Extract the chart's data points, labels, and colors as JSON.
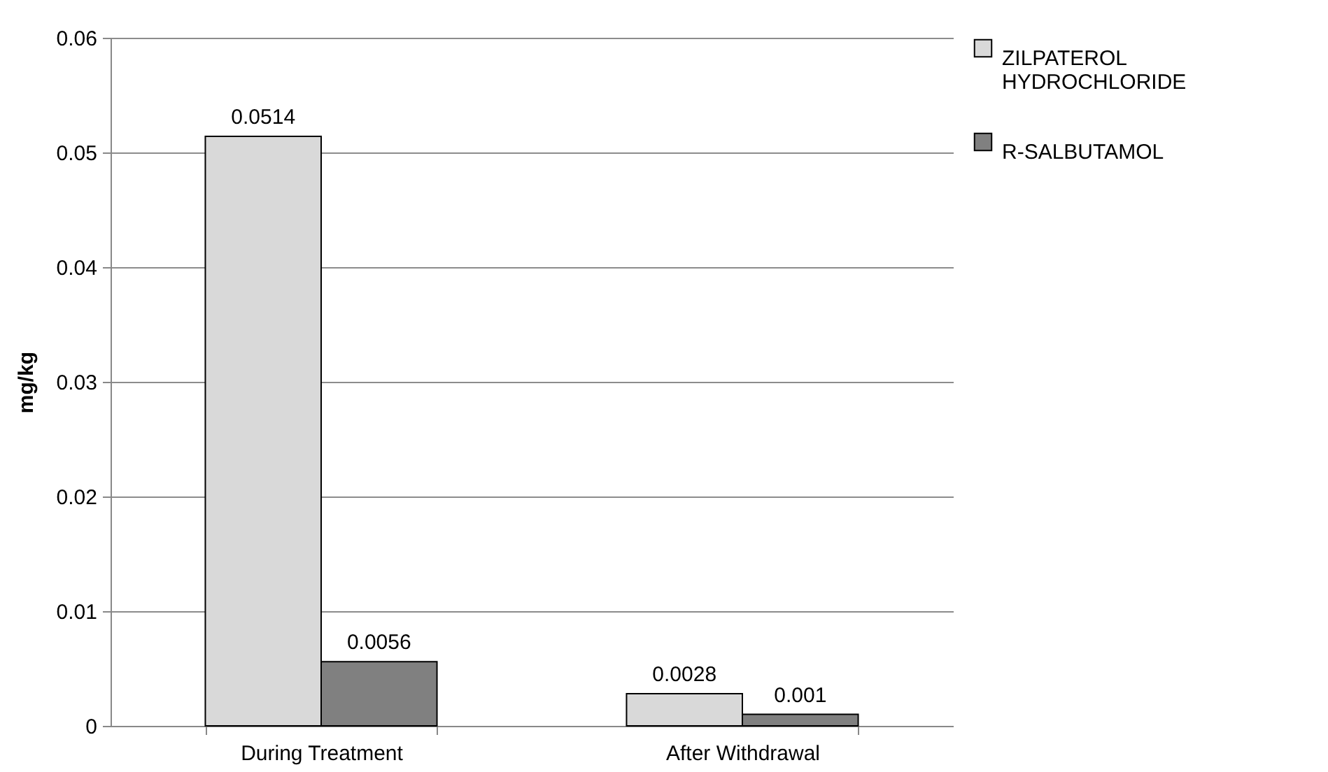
{
  "chart_data": {
    "type": "bar",
    "ylabel": "mg/kg",
    "categories": [
      "During Treatment",
      "After Withdrawal"
    ],
    "series": [
      {
        "name": "ZILPATEROL HYDROCHLORIDE",
        "color": "#d9d9d9",
        "values": [
          0.0514,
          0.0028
        ]
      },
      {
        "name": "R-SALBUTAMOL",
        "color": "#808080",
        "values": [
          0.0056,
          0.001
        ]
      }
    ],
    "ylim": [
      0,
      0.06
    ],
    "yticks": [
      0,
      0.01,
      0.02,
      0.03,
      0.04,
      0.05,
      0.06
    ],
    "grid": "y",
    "legend": "right",
    "data_labels": true
  }
}
